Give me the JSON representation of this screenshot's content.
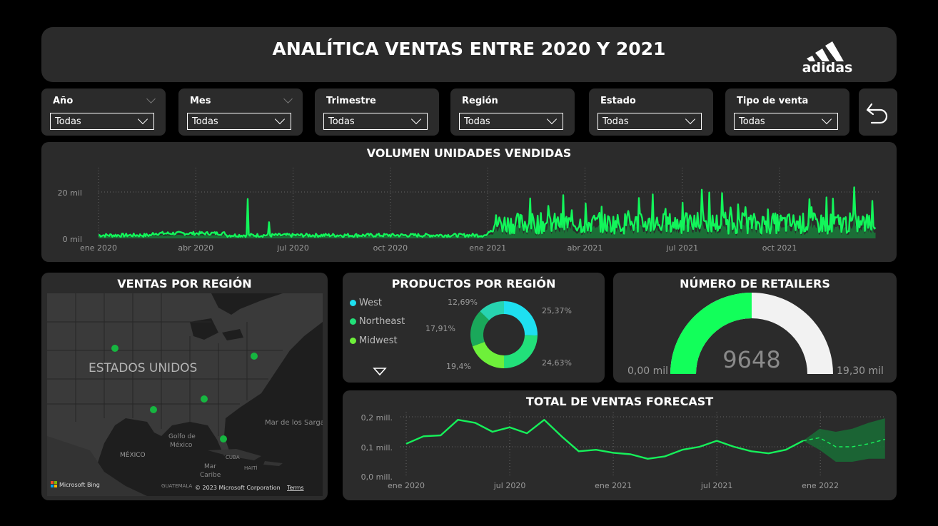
{
  "header": {
    "title": "ANALÍTICA VENTAS ENTRE 2020 Y 2021",
    "logo_text": "adidas"
  },
  "filters": [
    {
      "label": "Año",
      "value": "Todas"
    },
    {
      "label": "Mes",
      "value": "Todas"
    },
    {
      "label": "Trimestre",
      "value": "Todas"
    },
    {
      "label": "Región",
      "value": "Todas"
    },
    {
      "label": "Estado",
      "value": "Todas"
    },
    {
      "label": "Tipo de venta",
      "value": "Todas"
    }
  ],
  "reset_icon": "undo-arrow-icon",
  "volume": {
    "title": "VOLUMEN UNIDADES VENDIDAS",
    "y_ticks": [
      "20 mil",
      "0 mil"
    ],
    "x_ticks": [
      "ene 2020",
      "abr 2020",
      "jul 2020",
      "oct 2020",
      "ene 2021",
      "abr 2021",
      "jul 2021",
      "oct 2021"
    ]
  },
  "region_map": {
    "title": "VENTAS POR REGIÓN",
    "country_label": "ESTADOS UNIDOS",
    "labels": {
      "mexico": "MÉXICO",
      "gulf": "Golfo de\nMéxico",
      "sargasso": "Mar de los Sarga",
      "caribe": "Mar\nCaribe",
      "cuba": "CUBA",
      "haiti": "HAITÍ",
      "guatemala": "GUATEMALA"
    },
    "bing": "Microsoft Bing",
    "copyright": "© 2023 Microsoft Corporation",
    "terms": "Terms"
  },
  "products": {
    "title": "PRODUCTOS POR REGIÓN",
    "legend": [
      {
        "name": "West",
        "color": "#1ee0f0"
      },
      {
        "name": "Northeast",
        "color": "#22e07a"
      },
      {
        "name": "Midwest",
        "color": "#6ef03a"
      }
    ],
    "labels": [
      "25,37%",
      "24,63%",
      "19,4%",
      "17,91%",
      "12,69%"
    ]
  },
  "retailers": {
    "title": "NÚMERO DE RETAILERS",
    "value": "9648",
    "min": "0,00 mil",
    "max": "19,30 mil"
  },
  "forecast": {
    "title": "TOTAL DE VENTAS FORECAST",
    "y_ticks": [
      "0,2 mill.",
      "0,1 mill.",
      "0,0 mill."
    ],
    "x_ticks": [
      "ene 2020",
      "jul 2020",
      "ene 2021",
      "jul 2021",
      "ene 2022"
    ]
  },
  "chart_data": [
    {
      "type": "area",
      "title": "VOLUMEN UNIDADES VENDIDAS",
      "x_range": [
        "2020-01-01",
        "2021-12-31"
      ],
      "ylim": [
        0,
        25000
      ],
      "notes_visible_peaks": [
        {
          "x": "2020-05-20",
          "y": 17000
        },
        {
          "x": "2020-06-15",
          "y": 7000
        },
        {
          "x": "2021-07-20",
          "y": 21000
        },
        {
          "x": "2021-12-10",
          "y": 22000
        }
      ],
      "grid": true
    },
    {
      "type": "pie",
      "title": "PRODUCTOS POR REGIÓN",
      "slices": [
        {
          "name": "West",
          "value": 25.37,
          "color": "#1ee0f0"
        },
        {
          "name": "Northeast",
          "value": 24.63,
          "color": "#22e07a"
        },
        {
          "name": "Midwest",
          "value": 19.4,
          "color": "#6ef03a"
        },
        {
          "name": "",
          "value": 17.91,
          "color": "#1aa85a"
        },
        {
          "name": "",
          "value": 12.69,
          "color": "#27d4b0"
        }
      ]
    },
    {
      "type": "gauge",
      "title": "NÚMERO DE RETAILERS",
      "value": 9648,
      "min": 0,
      "max": 19300
    },
    {
      "type": "line",
      "title": "TOTAL DE VENTAS FORECAST",
      "x": [
        "2020-01",
        "2020-02",
        "2020-03",
        "2020-04",
        "2020-05",
        "2020-06",
        "2020-07",
        "2020-08",
        "2020-09",
        "2020-10",
        "2020-11",
        "2020-12",
        "2021-01",
        "2021-02",
        "2021-03",
        "2021-04",
        "2021-05",
        "2021-06",
        "2021-07",
        "2021-08",
        "2021-09",
        "2021-10",
        "2021-11",
        "2021-12"
      ],
      "values": [
        0.11,
        0.135,
        0.138,
        0.19,
        0.18,
        0.15,
        0.165,
        0.145,
        0.19,
        0.135,
        0.085,
        0.09,
        0.08,
        0.075,
        0.06,
        0.068,
        0.09,
        0.1,
        0.12,
        0.1,
        0.085,
        0.078,
        0.09,
        0.12
      ],
      "forecast_x": [
        "2021-12",
        "2022-01",
        "2022-02",
        "2022-03",
        "2022-04",
        "2022-05"
      ],
      "forecast_values": [
        0.12,
        0.13,
        0.1,
        0.1,
        0.11,
        0.125
      ],
      "forecast_upper": [
        0.12,
        0.16,
        0.15,
        0.16,
        0.18,
        0.195
      ],
      "forecast_lower": [
        0.12,
        0.09,
        0.05,
        0.05,
        0.06,
        0.06
      ],
      "ylim": [
        0,
        0.2
      ]
    }
  ]
}
